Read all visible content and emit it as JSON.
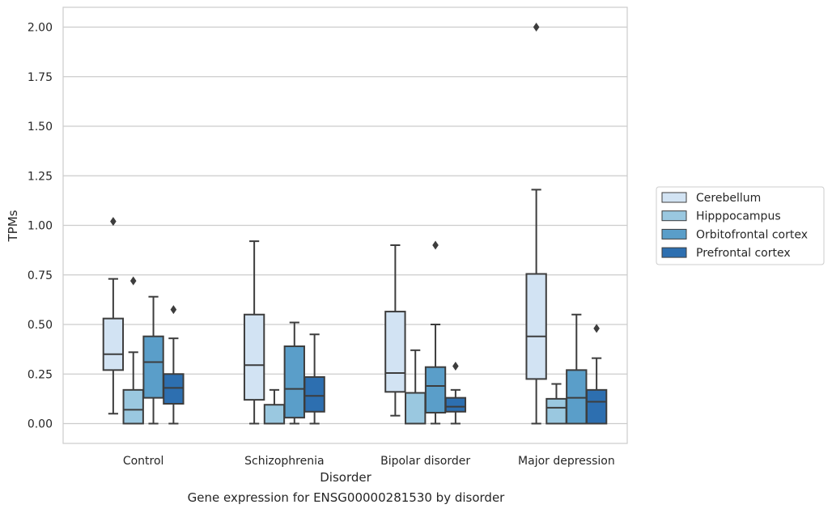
{
  "caption": "Gene expression for ENSG00000281530 by disorder",
  "chart_data": {
    "type": "box",
    "xlabel": "Disorder",
    "ylabel": "TPMs",
    "ylim": [
      -0.1,
      2.1
    ],
    "yticks": [
      "0.00",
      "0.25",
      "0.50",
      "0.75",
      "1.00",
      "1.25",
      "1.50",
      "1.75",
      "2.00"
    ],
    "ytick_values": [
      0,
      0.25,
      0.5,
      0.75,
      1.0,
      1.25,
      1.5,
      1.75,
      2.0
    ],
    "grid": "horizontal",
    "legend_position": "right",
    "categories": [
      "Control",
      "Schizophrenia",
      "Bipolar disorder",
      "Major depression"
    ],
    "series": [
      {
        "name": "Cerebellum",
        "color": "#d2e3f3",
        "boxes": [
          {
            "whisker_low": 0.05,
            "q1": 0.27,
            "median": 0.35,
            "q3": 0.53,
            "whisker_high": 0.73,
            "outliers": [
              1.02
            ]
          },
          {
            "whisker_low": 0.0,
            "q1": 0.12,
            "median": 0.295,
            "q3": 0.55,
            "whisker_high": 0.92,
            "outliers": []
          },
          {
            "whisker_low": 0.04,
            "q1": 0.16,
            "median": 0.255,
            "q3": 0.565,
            "whisker_high": 0.9,
            "outliers": []
          },
          {
            "whisker_low": 0.0,
            "q1": 0.225,
            "median": 0.44,
            "q3": 0.755,
            "whisker_high": 1.18,
            "outliers": [
              2.0
            ]
          }
        ]
      },
      {
        "name": "Hipppocampus",
        "color": "#9ac8e0",
        "boxes": [
          {
            "whisker_low": 0.0,
            "q1": 0.0,
            "median": 0.07,
            "q3": 0.17,
            "whisker_high": 0.36,
            "outliers": [
              0.72
            ]
          },
          {
            "whisker_low": 0.0,
            "q1": 0.0,
            "median": 0.0,
            "q3": 0.095,
            "whisker_high": 0.17,
            "outliers": []
          },
          {
            "whisker_low": 0.0,
            "q1": 0.0,
            "median": 0.0,
            "q3": 0.155,
            "whisker_high": 0.37,
            "outliers": []
          },
          {
            "whisker_low": 0.0,
            "q1": 0.0,
            "median": 0.08,
            "q3": 0.125,
            "whisker_high": 0.2,
            "outliers": []
          }
        ]
      },
      {
        "name": "Orbitofrontal cortex",
        "color": "#5a9ec9",
        "boxes": [
          {
            "whisker_low": 0.0,
            "q1": 0.13,
            "median": 0.31,
            "q3": 0.44,
            "whisker_high": 0.64,
            "outliers": []
          },
          {
            "whisker_low": 0.0,
            "q1": 0.03,
            "median": 0.175,
            "q3": 0.39,
            "whisker_high": 0.51,
            "outliers": []
          },
          {
            "whisker_low": 0.0,
            "q1": 0.055,
            "median": 0.19,
            "q3": 0.285,
            "whisker_high": 0.5,
            "outliers": [
              0.9
            ]
          },
          {
            "whisker_low": 0.0,
            "q1": 0.0,
            "median": 0.13,
            "q3": 0.27,
            "whisker_high": 0.55,
            "outliers": []
          }
        ]
      },
      {
        "name": "Prefrontal cortex",
        "color": "#2d6fb0",
        "boxes": [
          {
            "whisker_low": 0.0,
            "q1": 0.1,
            "median": 0.18,
            "q3": 0.25,
            "whisker_high": 0.43,
            "outliers": [
              0.575
            ]
          },
          {
            "whisker_low": 0.0,
            "q1": 0.06,
            "median": 0.14,
            "q3": 0.235,
            "whisker_high": 0.45,
            "outliers": []
          },
          {
            "whisker_low": 0.0,
            "q1": 0.06,
            "median": 0.085,
            "q3": 0.13,
            "whisker_high": 0.17,
            "outliers": [
              0.29
            ]
          },
          {
            "whisker_low": 0.0,
            "q1": 0.0,
            "median": 0.11,
            "q3": 0.17,
            "whisker_high": 0.33,
            "outliers": [
              0.48
            ]
          }
        ]
      }
    ]
  }
}
